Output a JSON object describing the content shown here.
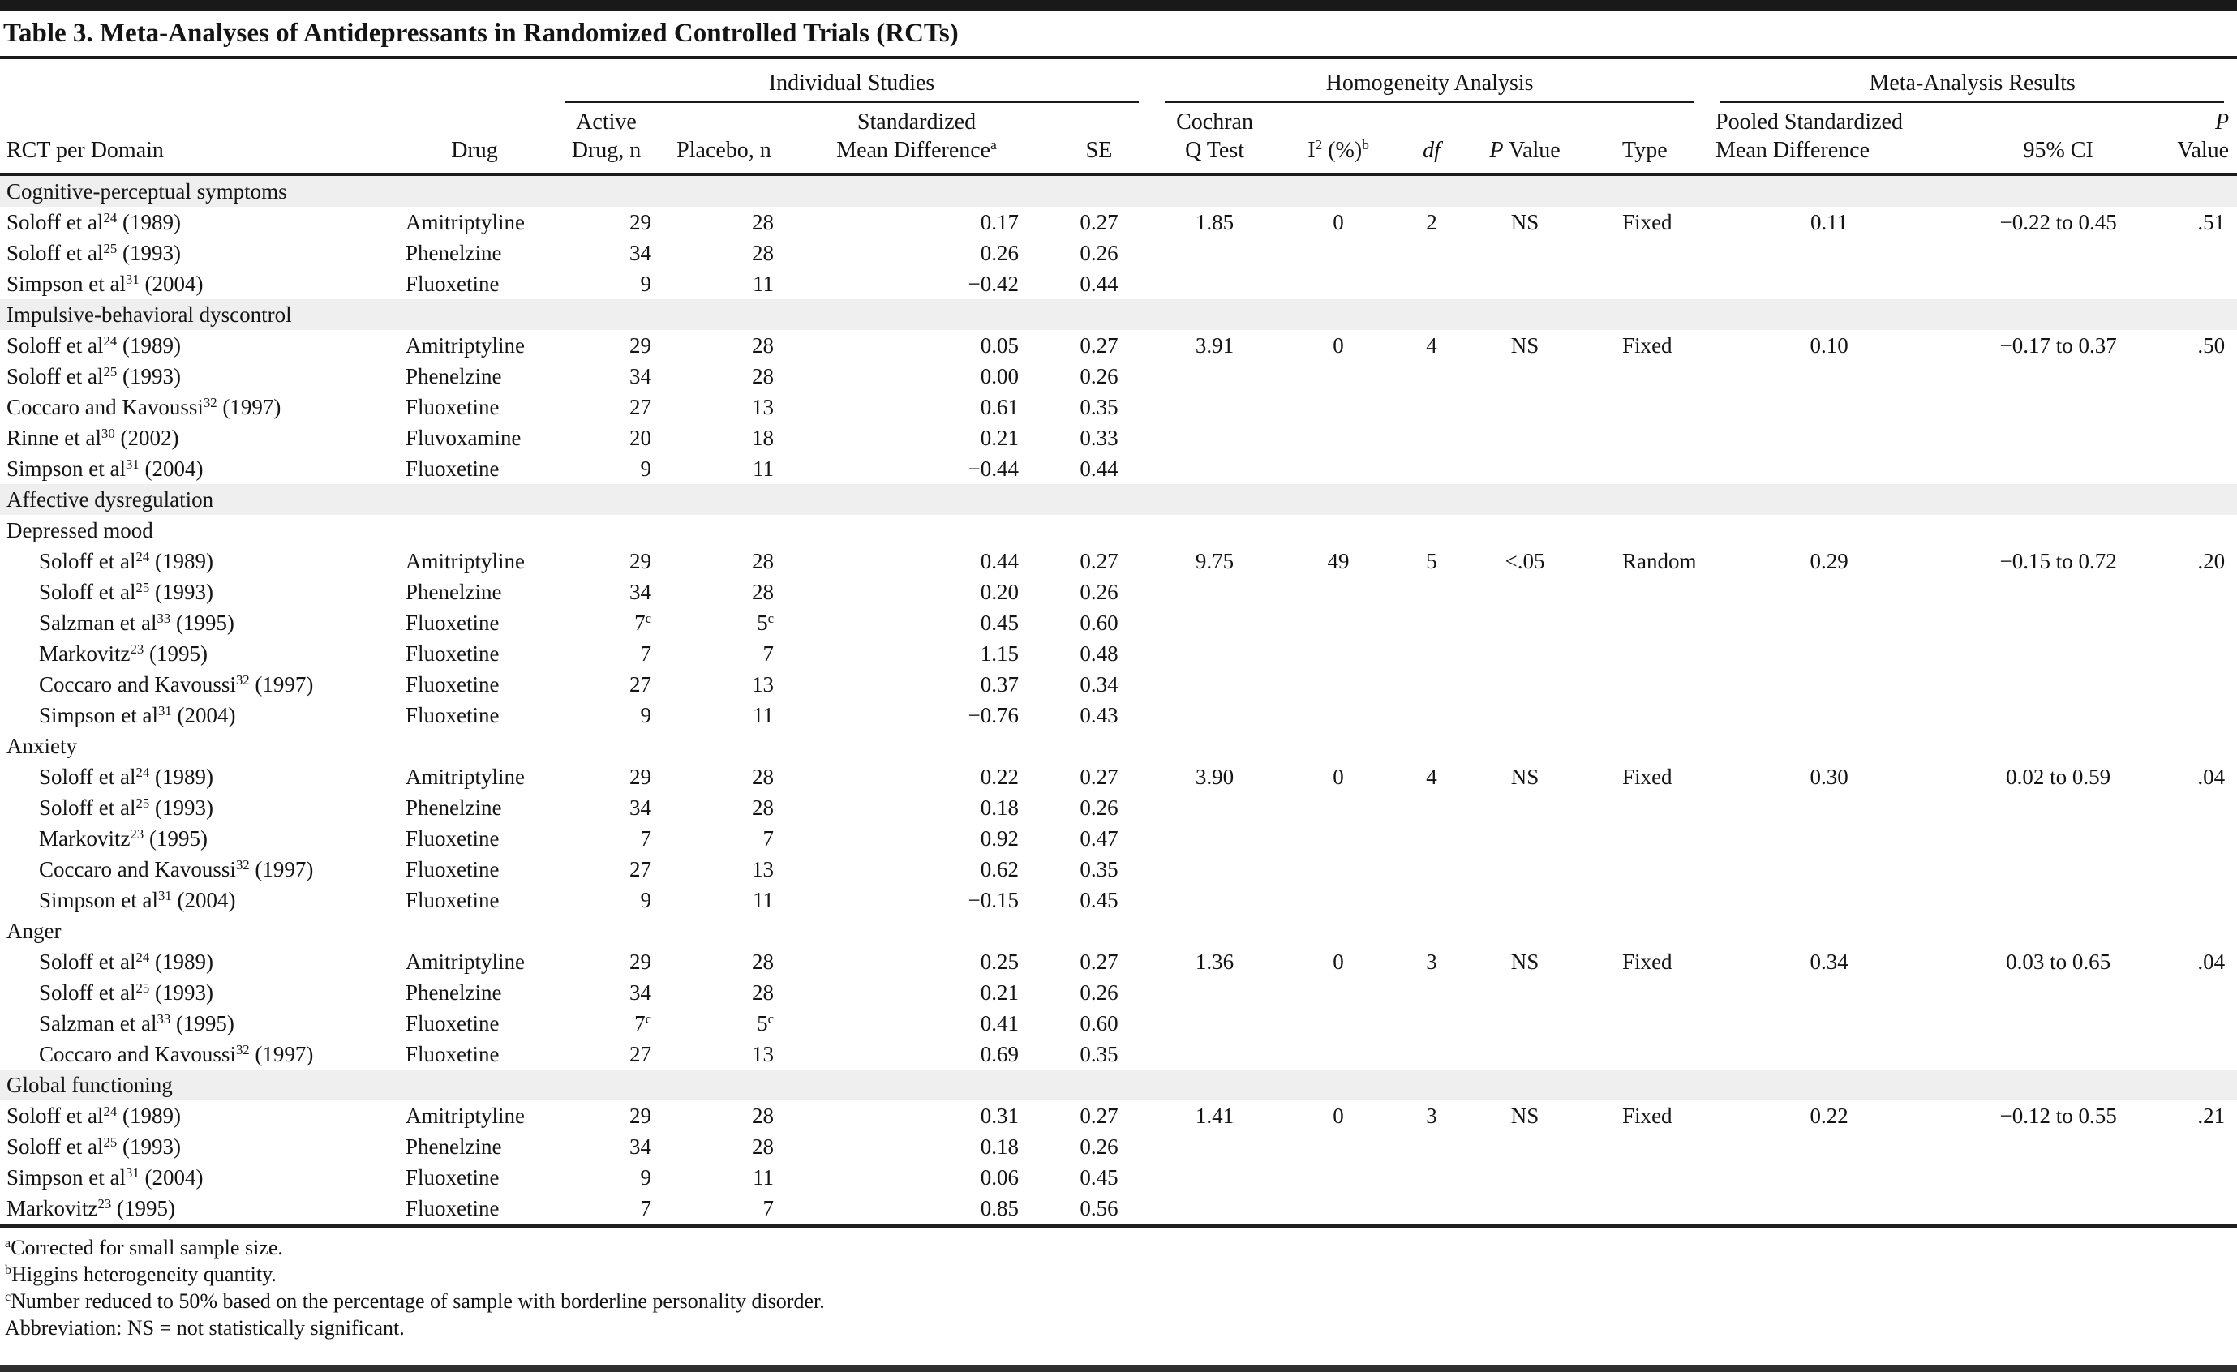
{
  "title": "Table 3. Meta-Analyses of Antidepressants in Randomized Controlled Trials (RCTs)",
  "column_groups": [
    {
      "label": "Individual Studies"
    },
    {
      "label": "Homogeneity Analysis"
    },
    {
      "label": "Meta-Analysis Results"
    }
  ],
  "columns": [
    "RCT per Domain",
    "Drug",
    "Active\nDrug, n",
    "Placebo, n",
    "Standardized\nMean Difference^a^",
    "SE",
    "Cochran\nQ Test",
    "I^2^ (%)^b^",
    "*df*",
    "*P* Value",
    "Type",
    "Pooled Standardized\nMean Difference",
    "95% CI",
    "*P* Value"
  ],
  "rows": [
    {
      "kind": "band",
      "label": "Cognitive-perceptual symptoms"
    },
    {
      "kind": "study",
      "study": "Soloff et al^24^ (1989)",
      "drug": "Amitriptyline",
      "active_n": "29",
      "placebo_n": "28",
      "smd": "0.17",
      "se": "0.27",
      "q": "1.85",
      "i2": "0",
      "df": "2",
      "p": "NS",
      "type": "Fixed",
      "pooled": "0.11",
      "ci": "−0.22 to 0.45",
      "pval": ".51"
    },
    {
      "kind": "study",
      "study": "Soloff et al^25^ (1993)",
      "drug": "Phenelzine",
      "active_n": "34",
      "placebo_n": "28",
      "smd": "0.26",
      "se": "0.26"
    },
    {
      "kind": "study",
      "study": "Simpson et al^31^ (2004)",
      "drug": "Fluoxetine",
      "active_n": "9",
      "placebo_n": "11",
      "smd": "−0.42",
      "se": "0.44"
    },
    {
      "kind": "band",
      "label": "Impulsive-behavioral dyscontrol"
    },
    {
      "kind": "study",
      "study": "Soloff et al^24^ (1989)",
      "drug": "Amitriptyline",
      "active_n": "29",
      "placebo_n": "28",
      "smd": "0.05",
      "se": "0.27",
      "q": "3.91",
      "i2": "0",
      "df": "4",
      "p": "NS",
      "type": "Fixed",
      "pooled": "0.10",
      "ci": "−0.17 to 0.37",
      "pval": ".50"
    },
    {
      "kind": "study",
      "study": "Soloff et al^25^ (1993)",
      "drug": "Phenelzine",
      "active_n": "34",
      "placebo_n": "28",
      "smd": "0.00",
      "se": "0.26"
    },
    {
      "kind": "study",
      "study": "Coccaro and Kavoussi^32^ (1997)",
      "drug": "Fluoxetine",
      "active_n": "27",
      "placebo_n": "13",
      "smd": "0.61",
      "se": "0.35"
    },
    {
      "kind": "study",
      "study": "Rinne et al^30^ (2002)",
      "drug": "Fluvoxamine",
      "active_n": "20",
      "placebo_n": "18",
      "smd": "0.21",
      "se": "0.33"
    },
    {
      "kind": "study",
      "study": "Simpson et al^31^ (2004)",
      "drug": "Fluoxetine",
      "active_n": "9",
      "placebo_n": "11",
      "smd": "−0.44",
      "se": "0.44"
    },
    {
      "kind": "band",
      "label": "Affective dysregulation"
    },
    {
      "kind": "sub",
      "label": "Depressed mood"
    },
    {
      "kind": "study",
      "indent": true,
      "study": "Soloff et al^24^ (1989)",
      "drug": "Amitriptyline",
      "active_n": "29",
      "placebo_n": "28",
      "smd": "0.44",
      "se": "0.27",
      "q": "9.75",
      "i2": "49",
      "df": "5",
      "p": "<.05",
      "type": "Random",
      "pooled": "0.29",
      "ci": "−0.15 to 0.72",
      "pval": ".20"
    },
    {
      "kind": "study",
      "indent": true,
      "study": "Soloff et al^25^ (1993)",
      "drug": "Phenelzine",
      "active_n": "34",
      "placebo_n": "28",
      "smd": "0.20",
      "se": "0.26"
    },
    {
      "kind": "study",
      "indent": true,
      "study": "Salzman et al^33^ (1995)",
      "drug": "Fluoxetine",
      "active_n": "7^c^",
      "placebo_n": "5^c^",
      "smd": "0.45",
      "se": "0.60"
    },
    {
      "kind": "study",
      "indent": true,
      "study": "Markovitz^23^ (1995)",
      "drug": "Fluoxetine",
      "active_n": "7",
      "placebo_n": "7",
      "smd": "1.15",
      "se": "0.48"
    },
    {
      "kind": "study",
      "indent": true,
      "study": "Coccaro and Kavoussi^32^ (1997)",
      "drug": "Fluoxetine",
      "active_n": "27",
      "placebo_n": "13",
      "smd": "0.37",
      "se": "0.34"
    },
    {
      "kind": "study",
      "indent": true,
      "study": "Simpson et al^31^ (2004)",
      "drug": "Fluoxetine",
      "active_n": "9",
      "placebo_n": "11",
      "smd": "−0.76",
      "se": "0.43"
    },
    {
      "kind": "sub",
      "label": "Anxiety"
    },
    {
      "kind": "study",
      "indent": true,
      "study": "Soloff et al^24^ (1989)",
      "drug": "Amitriptyline",
      "active_n": "29",
      "placebo_n": "28",
      "smd": "0.22",
      "se": "0.27",
      "q": "3.90",
      "i2": "0",
      "df": "4",
      "p": "NS",
      "type": "Fixed",
      "pooled": "0.30",
      "ci": "0.02 to 0.59",
      "pval": ".04"
    },
    {
      "kind": "study",
      "indent": true,
      "study": "Soloff et al^25^ (1993)",
      "drug": "Phenelzine",
      "active_n": "34",
      "placebo_n": "28",
      "smd": "0.18",
      "se": "0.26"
    },
    {
      "kind": "study",
      "indent": true,
      "study": "Markovitz^23^ (1995)",
      "drug": "Fluoxetine",
      "active_n": "7",
      "placebo_n": "7",
      "smd": "0.92",
      "se": "0.47"
    },
    {
      "kind": "study",
      "indent": true,
      "study": "Coccaro and Kavoussi^32^ (1997)",
      "drug": "Fluoxetine",
      "active_n": "27",
      "placebo_n": "13",
      "smd": "0.62",
      "se": "0.35"
    },
    {
      "kind": "study",
      "indent": true,
      "study": "Simpson et al^31^ (2004)",
      "drug": "Fluoxetine",
      "active_n": "9",
      "placebo_n": "11",
      "smd": "−0.15",
      "se": "0.45"
    },
    {
      "kind": "sub",
      "label": "Anger"
    },
    {
      "kind": "study",
      "indent": true,
      "study": "Soloff et al^24^ (1989)",
      "drug": "Amitriptyline",
      "active_n": "29",
      "placebo_n": "28",
      "smd": "0.25",
      "se": "0.27",
      "q": "1.36",
      "i2": "0",
      "df": "3",
      "p": "NS",
      "type": "Fixed",
      "pooled": "0.34",
      "ci": "0.03 to 0.65",
      "pval": ".04"
    },
    {
      "kind": "study",
      "indent": true,
      "study": "Soloff et al^25^ (1993)",
      "drug": "Phenelzine",
      "active_n": "34",
      "placebo_n": "28",
      "smd": "0.21",
      "se": "0.26"
    },
    {
      "kind": "study",
      "indent": true,
      "study": "Salzman et al^33^ (1995)",
      "drug": "Fluoxetine",
      "active_n": "7^c^",
      "placebo_n": "5^c^",
      "smd": "0.41",
      "se": "0.60"
    },
    {
      "kind": "study",
      "indent": true,
      "study": "Coccaro and Kavoussi^32^ (1997)",
      "drug": "Fluoxetine",
      "active_n": "27",
      "placebo_n": "13",
      "smd": "0.69",
      "se": "0.35"
    },
    {
      "kind": "band",
      "label": "Global functioning"
    },
    {
      "kind": "study",
      "study": "Soloff et al^24^ (1989)",
      "drug": "Amitriptyline",
      "active_n": "29",
      "placebo_n": "28",
      "smd": "0.31",
      "se": "0.27",
      "q": "1.41",
      "i2": "0",
      "df": "3",
      "p": "NS",
      "type": "Fixed",
      "pooled": "0.22",
      "ci": "−0.12 to 0.55",
      "pval": ".21"
    },
    {
      "kind": "study",
      "study": "Soloff et al^25^ (1993)",
      "drug": "Phenelzine",
      "active_n": "34",
      "placebo_n": "28",
      "smd": "0.18",
      "se": "0.26"
    },
    {
      "kind": "study",
      "study": "Simpson et al^31^ (2004)",
      "drug": "Fluoxetine",
      "active_n": "9",
      "placebo_n": "11",
      "smd": "0.06",
      "se": "0.45"
    },
    {
      "kind": "study",
      "study": "Markovitz^23^ (1995)",
      "drug": "Fluoxetine",
      "active_n": "7",
      "placebo_n": "7",
      "smd": "0.85",
      "se": "0.56"
    }
  ],
  "footnotes": [
    "^a^Corrected for small sample size.",
    "^b^Higgins heterogeneity quantity.",
    "^c^Number reduced to 50% based on the percentage of sample with borderline personality disorder.",
    "Abbreviation: NS = not statistically significant."
  ],
  "colors": {
    "section_band": "#efefef",
    "rule": "#1a1a1a",
    "text": "#141414"
  }
}
